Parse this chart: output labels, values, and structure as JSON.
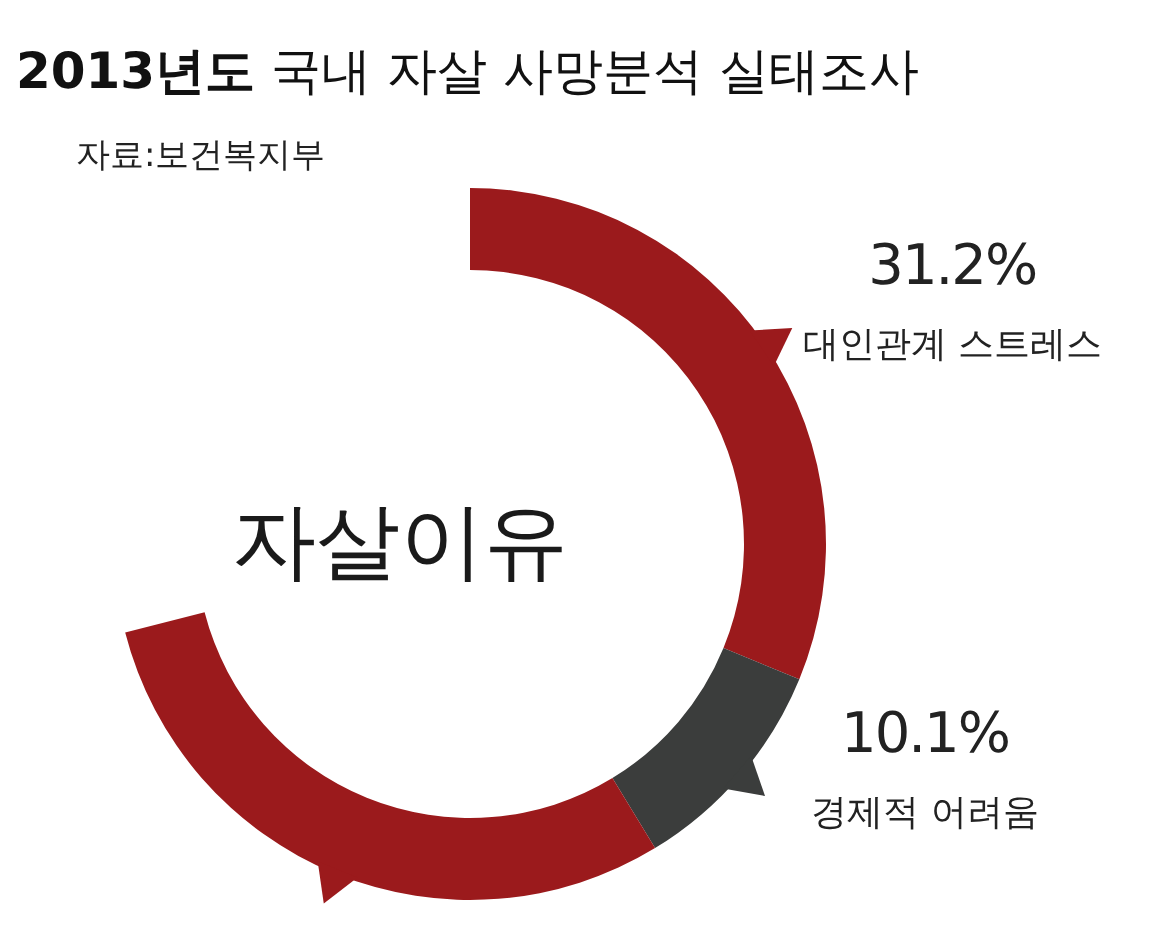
{
  "chart_data": {
    "type": "donut",
    "title": "2013년도 국내 자살 사망분석 실태조사",
    "subtitle": "자료:보건복지부",
    "categories": [
      "대인관계 스트레스",
      "경제적 어려움",
      null
    ],
    "values": [
      31.2,
      10.1,
      29.7
    ],
    "colors": [
      "#9b1a1c",
      "#3b3d3c",
      "#9b1a1c"
    ],
    "value_labels": [
      "31.2%",
      "10.1%",
      null
    ],
    "annotations": [
      "자살이유"
    ]
  }
}
